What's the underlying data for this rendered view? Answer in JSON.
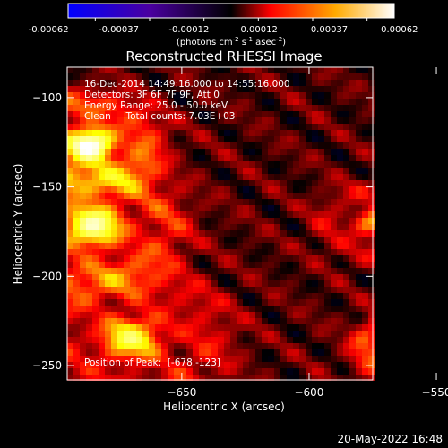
{
  "colorbar": {
    "ticks": [
      "-0.00062",
      "-0.00037",
      "-0.00012",
      "0.00012",
      "0.00037",
      "0.00062"
    ],
    "unit_label_parts": [
      "(photons cm",
      "-2",
      " s",
      "-1",
      " asec",
      "-2",
      ")"
    ]
  },
  "chart_data": {
    "type": "heatmap",
    "title": "Reconstructed RHESSI Image",
    "xlabel": "Heliocentric X (arcsec)",
    "ylabel": "Heliocentric Y (arcsec)",
    "xlim": [
      -695,
      -575
    ],
    "ylim": [
      -258,
      -83
    ],
    "x_ticks": [
      -650,
      -600,
      -550
    ],
    "y_ticks": [
      -100,
      -150,
      -200,
      -250
    ],
    "x_tick_labels": [
      "−650",
      "−600",
      "−550"
    ],
    "y_tick_labels": [
      "−100",
      "−150",
      "−200",
      "−250"
    ],
    "colormap": [
      "#0000ff",
      "#000000",
      "#ff0000",
      "#ffff00",
      "#ffffff"
    ],
    "colorbar_range": [
      -0.00062,
      0.00062
    ],
    "peak": [
      -678,
      -123
    ],
    "annotations": [
      "16-Dec-2014 14:49:16.000 to 14:55:16.000",
      "Detectors: 3F 6F 7F 9F, Att 0",
      "Energy Range: 25.0 - 50.0 keV",
      "Clean     Total counts: 7.03E+03"
    ],
    "peak_label": "Position of Peak:  [-678,-123]",
    "grid": false,
    "legend": "none"
  },
  "footer": {
    "date": "20-May-2022 16:48"
  }
}
